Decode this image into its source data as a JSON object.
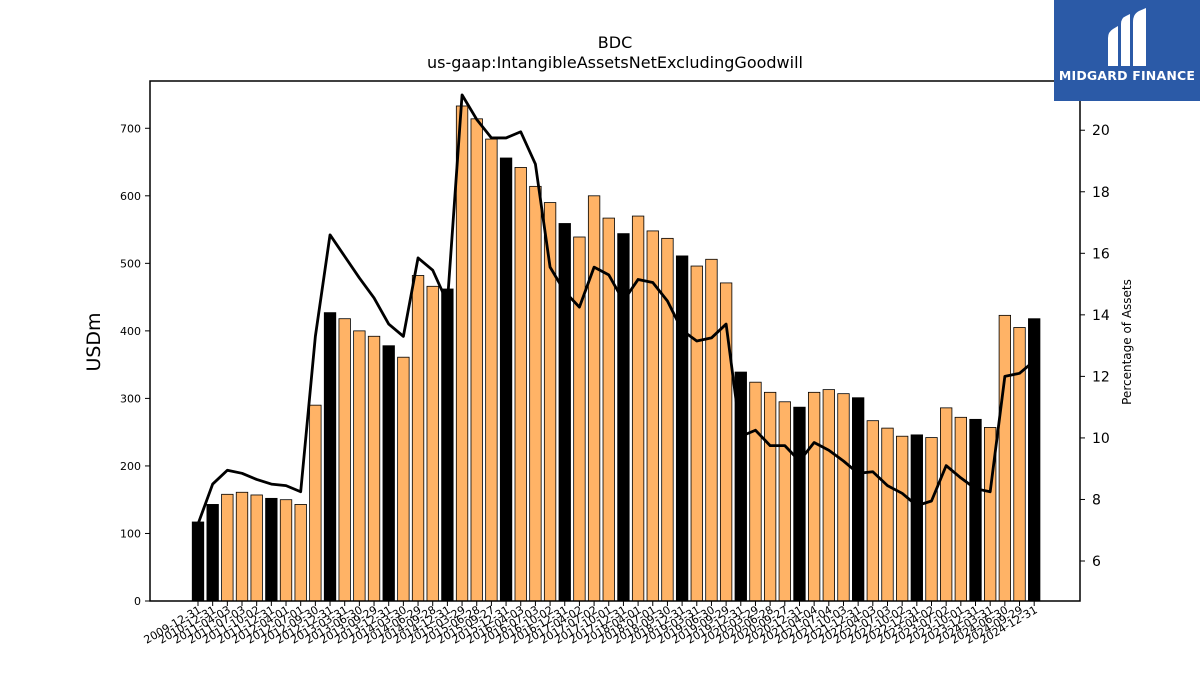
{
  "chart_data": {
    "type": "bar",
    "title": "BDC",
    "subtitle": "us-gaap:IntangibleAssetsNetExcludingGoodwill",
    "ylabel": "USDm",
    "y2label": "Percentage of Assets",
    "ylim": [
      0,
      770
    ],
    "y2lim": [
      4.7,
      21.6
    ],
    "yticks": [
      0,
      100,
      200,
      300,
      400,
      500,
      600,
      700
    ],
    "y2ticks": [
      6,
      8,
      10,
      12,
      14,
      16,
      18,
      20
    ],
    "x_tick_labels": [
      "2009-12-31",
      "2010-12-31",
      "2011-04-03",
      "2011-07-03",
      "2011-10-02",
      "2011-12-31",
      "2012-04-01",
      "2012-07-01",
      "2012-09-30",
      "2012-12-31",
      "2013-03-31",
      "2013-06-30",
      "2013-09-29",
      "2013-12-31",
      "2014-03-30",
      "2014-06-29",
      "2014-09-28",
      "2014-12-31",
      "2015-03-29",
      "2015-06-28",
      "2015-09-27",
      "2015-12-31",
      "2016-04-03",
      "2016-07-03",
      "2016-10-02",
      "2016-12-31",
      "2017-04-02",
      "2017-07-02",
      "2017-10-01",
      "2017-12-31",
      "2018-04-01",
      "2018-07-01",
      "2018-09-30",
      "2018-12-31",
      "2019-03-31",
      "2019-06-30",
      "2019-09-29",
      "2019-12-31",
      "2020-03-29",
      "2020-06-28",
      "2020-09-27",
      "2020-12-31",
      "2021-04-04",
      "2021-07-04",
      "2021-10-03",
      "2021-12-31",
      "2022-04-03",
      "2022-07-03",
      "2022-10-02",
      "2022-12-31",
      "2023-04-02",
      "2023-07-02",
      "2023-10-01",
      "2023-12-31",
      "2024-03-31",
      "2024-06-30",
      "2024-09-29",
      "2024-12-31"
    ],
    "bar_types": [
      "annual",
      "annual",
      "quarterly",
      "quarterly",
      "quarterly",
      "annual",
      "quarterly",
      "quarterly",
      "quarterly",
      "annual",
      "quarterly",
      "quarterly",
      "quarterly",
      "annual",
      "quarterly",
      "quarterly",
      "quarterly",
      "annual",
      "quarterly",
      "quarterly",
      "quarterly",
      "annual",
      "quarterly",
      "quarterly",
      "quarterly",
      "annual",
      "quarterly",
      "quarterly",
      "quarterly",
      "annual",
      "quarterly",
      "quarterly",
      "quarterly",
      "annual",
      "quarterly",
      "quarterly",
      "quarterly",
      "annual",
      "quarterly",
      "quarterly",
      "quarterly",
      "annual",
      "quarterly",
      "quarterly",
      "quarterly",
      "annual",
      "quarterly",
      "quarterly",
      "quarterly",
      "annual",
      "quarterly",
      "quarterly",
      "quarterly",
      "annual",
      "quarterly",
      "quarterly",
      "quarterly",
      "annual"
    ],
    "series": [
      {
        "kind": "bar",
        "values": [
          117,
          143,
          158,
          161,
          157,
          152,
          150,
          143,
          290,
          427,
          418,
          400,
          392,
          378,
          361,
          482,
          466,
          462,
          733,
          714,
          684,
          656,
          642,
          614,
          590,
          559,
          539,
          600,
          567,
          544,
          570,
          548,
          537,
          511,
          496,
          506,
          471,
          339,
          324,
          309,
          295,
          287,
          309,
          313,
          307,
          301,
          267,
          256,
          244,
          246,
          242,
          286,
          272,
          269,
          257,
          423,
          405,
          418
        ],
        "color_annual": "#000000",
        "color_quarterly": "#ffb366"
      },
      {
        "kind": "line",
        "axis": "right",
        "values": [
          7.2,
          8.5,
          8.95,
          8.85,
          8.65,
          8.5,
          8.45,
          8.25,
          13.3,
          16.6,
          15.9,
          15.2,
          14.55,
          13.7,
          13.3,
          15.85,
          15.45,
          14.4,
          21.15,
          20.35,
          19.75,
          19.75,
          19.95,
          18.9,
          15.55,
          14.75,
          14.25,
          15.55,
          15.3,
          14.45,
          15.15,
          15.05,
          14.45,
          13.5,
          13.15,
          13.25,
          13.7,
          10.05,
          10.25,
          9.75,
          9.75,
          9.25,
          9.85,
          9.6,
          9.25,
          8.85,
          8.9,
          8.45,
          8.2,
          7.8,
          7.95,
          9.1,
          8.7,
          8.35,
          8.25,
          12.0,
          12.1,
          12.5
        ],
        "color": "#000000"
      }
    ],
    "grid": false,
    "legend": "none"
  },
  "logo": {
    "text": "MIDGARD FINANCE",
    "bg": "#2b5aa7"
  }
}
